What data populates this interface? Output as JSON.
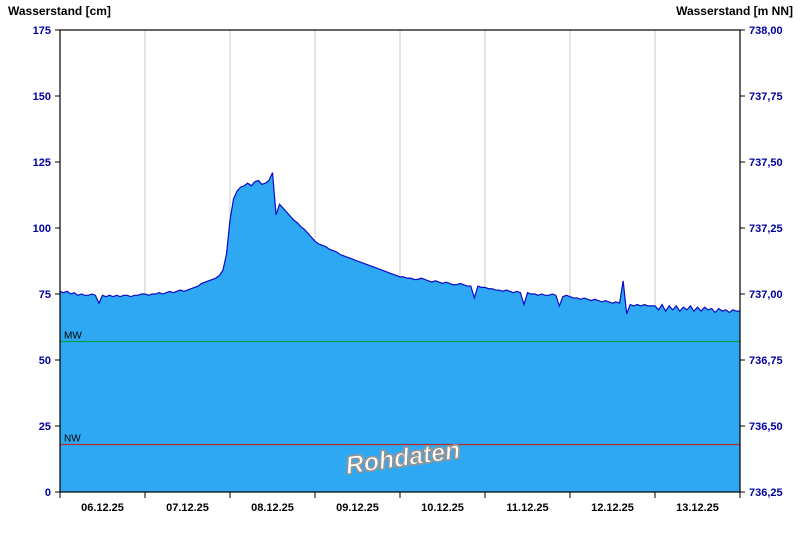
{
  "title_left": "Wasserstand [cm]",
  "title_right": "Wasserstand [m NN]",
  "watermark": "Rohdaten",
  "chart_data": {
    "type": "area",
    "title": "",
    "x_tick_dates": [
      "06.12.25",
      "07.12.25",
      "08.12.25",
      "09.12.25",
      "10.12.25",
      "11.12.25",
      "12.12.25",
      "13.12.25"
    ],
    "x_points_per_day": 24,
    "x_range_days": 8,
    "grid": "vertical-only",
    "y_left": {
      "label": "Wasserstand [cm]",
      "min": 0,
      "max": 175,
      "step": 25,
      "tick_labels": [
        "0",
        "25",
        "50",
        "75",
        "100",
        "125",
        "150",
        "175"
      ]
    },
    "y_right": {
      "label": "Wasserstand [m NN]",
      "min": 736.25,
      "max": 738.0,
      "step": 0.25,
      "tick_labels": [
        "736,25",
        "736,50",
        "736,75",
        "737,00",
        "737,25",
        "737,50",
        "737,75",
        "738,00"
      ]
    },
    "series": [
      {
        "name": "Wasserstand Rohdaten",
        "unit": "cm",
        "values": [
          76,
          75.5,
          76,
          75,
          75.5,
          74.5,
          75,
          74.5,
          74.5,
          75,
          74.5,
          71.5,
          74.5,
          74,
          74.5,
          74,
          74.5,
          74,
          74.5,
          74.5,
          74,
          74.5,
          74.5,
          75,
          75,
          74.5,
          75,
          75,
          75.5,
          75,
          75.5,
          76,
          75.5,
          76,
          76.5,
          76,
          76.5,
          77,
          77.5,
          78,
          79,
          79.5,
          80,
          80.5,
          81,
          82,
          84,
          90,
          103,
          111,
          114,
          115.5,
          116,
          117,
          116,
          117.5,
          118,
          116.5,
          117,
          118,
          121,
          105,
          109,
          107.5,
          106,
          104.5,
          103,
          102,
          100.5,
          99.5,
          98,
          96.5,
          95,
          94,
          93.5,
          93,
          92,
          91.5,
          91,
          90,
          89.5,
          89,
          88.5,
          88,
          87.5,
          87,
          86.5,
          86,
          85.5,
          85,
          84.5,
          84,
          83.5,
          83,
          82.5,
          82,
          81.5,
          81.5,
          81,
          81,
          80.5,
          80.5,
          81,
          80.5,
          80,
          79.5,
          80,
          79.5,
          79,
          79.5,
          79,
          78.5,
          78.5,
          79,
          78.5,
          78,
          78,
          73.5,
          78,
          77.5,
          77.5,
          77,
          77,
          76.5,
          76.5,
          76,
          76.5,
          76,
          75.5,
          76,
          75.5,
          71,
          75.5,
          75,
          75,
          74.5,
          75,
          74.5,
          74.5,
          75,
          74.5,
          70.5,
          74,
          74.5,
          74,
          73.5,
          73.5,
          73,
          73.5,
          73,
          72.5,
          73,
          72.5,
          72,
          72.5,
          72,
          71.5,
          72,
          71.5,
          80,
          67.5,
          71,
          70.5,
          71,
          70.5,
          71,
          70.5,
          70.5,
          70.5,
          69,
          71,
          68.5,
          70.5,
          69,
          70.5,
          68.5,
          70,
          69,
          70.5,
          68.5,
          70,
          68.5,
          70,
          69,
          69.5,
          68,
          69.5,
          68.5,
          69,
          68,
          69,
          68.5,
          68.5
        ]
      }
    ],
    "reference_lines": [
      {
        "name": "MW",
        "value_cm": 57,
        "color": "#00A050"
      },
      {
        "name": "NW",
        "value_cm": 18,
        "color": "#B03030"
      }
    ],
    "colors": {
      "area_fill": "#2EA8F2",
      "series_line": "#0A0AC8",
      "grid_line": "#C8C8C8",
      "plot_border": "#000000",
      "y_tick_label": "#0000A0",
      "x_tick_label": "#000000"
    },
    "legend_position": "none"
  }
}
